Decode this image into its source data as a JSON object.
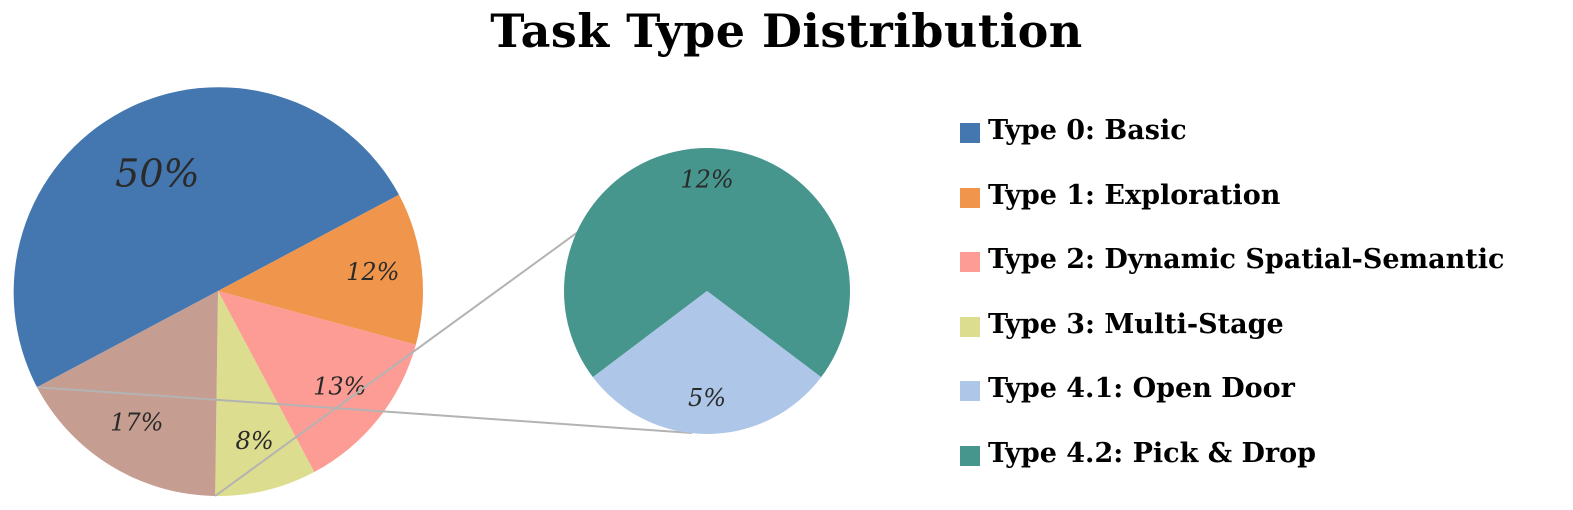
{
  "chart_data": {
    "type": "pie",
    "title": "Task Type Distribution",
    "main_pie": {
      "slices": [
        {
          "key": "type0",
          "value": 50,
          "label": "50%"
        },
        {
          "key": "type1",
          "value": 12,
          "label": "12%"
        },
        {
          "key": "type2",
          "value": 13,
          "label": "13%"
        },
        {
          "key": "type3",
          "value": 8,
          "label": "8%"
        },
        {
          "key": "type4",
          "value": 17,
          "label": "17%"
        }
      ]
    },
    "breakout_pie": {
      "of": "type4",
      "slices": [
        {
          "key": "type4_2",
          "value": 12,
          "label": "12%"
        },
        {
          "key": "type4_1",
          "value": 5,
          "label": "5%"
        }
      ]
    },
    "colors": {
      "type0": "#4477b0",
      "type1": "#ef954c",
      "type2": "#fd9c94",
      "type3": "#dcdd8e",
      "type4": "#c59d91",
      "type4_1": "#aec6e7",
      "type4_2": "#46968e"
    },
    "legend": [
      {
        "key": "type0",
        "label": "Type 0: Basic"
      },
      {
        "key": "type1",
        "label": "Type 1: Exploration"
      },
      {
        "key": "type2",
        "label": "Type 2: Dynamic Spatial-Semantic"
      },
      {
        "key": "type3",
        "label": "Type 3: Multi-Stage"
      },
      {
        "key": "type4_1",
        "label": "Type 4.1: Open Door"
      },
      {
        "key": "type4_2",
        "label": "Type 4.2: Pick & Drop"
      }
    ],
    "legend_position": "right"
  }
}
